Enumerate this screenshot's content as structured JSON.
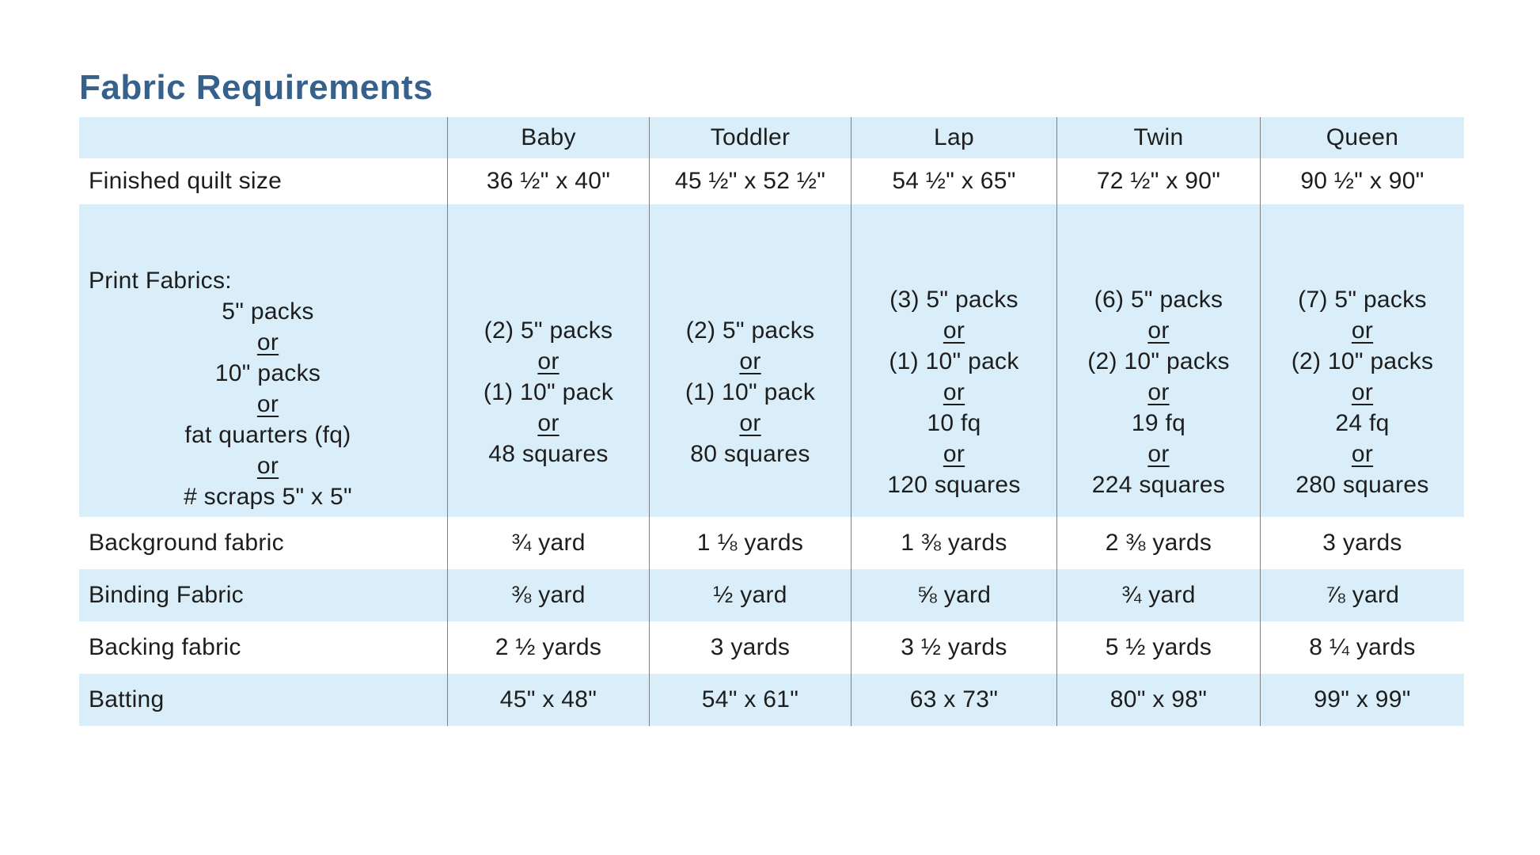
{
  "page": {
    "title": "Fabric Requirements"
  },
  "colors": {
    "title_color": "#36618c",
    "row_blue": "#daeef9",
    "divider": "#7f7f7f",
    "text": "#1d1d1d"
  },
  "table": {
    "columns": [
      "",
      "Baby",
      "Toddler",
      "Lap",
      "Twin",
      "Queen"
    ],
    "rows": [
      {
        "label": "Finished quilt size",
        "cells": [
          "36 ½\" x 40\"",
          "45 ½\" x 52 ½\"",
          "54 ½\" x 65\"",
          "72 ½\" x 90\"",
          "90 ½\" x 90\""
        ]
      },
      {
        "label": "Print Fabrics:",
        "label_lines": [
          "5\" packs",
          "or",
          "10\" packs",
          "or",
          "fat quarters (fq)",
          "or",
          "# scraps 5\" x 5\""
        ],
        "cells": [
          [
            "(2) 5\" packs",
            "or",
            "(1) 10\" pack",
            "or",
            "48 squares"
          ],
          [
            "(2) 5\" packs",
            "or",
            "(1) 10\" pack",
            "or",
            "80 squares"
          ],
          [
            "(3) 5\" packs",
            "or",
            "(1) 10\" pack",
            "or",
            "10 fq",
            "or",
            "120 squares"
          ],
          [
            "(6) 5\" packs",
            "or",
            "(2) 10\" packs",
            "or",
            "19 fq",
            "or",
            "224 squares"
          ],
          [
            "(7) 5\" packs",
            "or",
            "(2) 10\" packs",
            "or",
            "24 fq",
            "or",
            "280 squares"
          ]
        ]
      },
      {
        "label": "Background fabric",
        "cells": [
          "¾ yard",
          "1 ⅛ yards",
          "1 ⅜ yards",
          "2 ⅜ yards",
          "3 yards"
        ]
      },
      {
        "label": "Binding Fabric",
        "cells": [
          "⅜ yard",
          "½ yard",
          "⅝ yard",
          "¾ yard",
          "⅞ yard"
        ]
      },
      {
        "label": "Backing fabric",
        "cells": [
          "2 ½ yards",
          "3 yards",
          "3 ½ yards",
          "5 ½ yards",
          "8 ¼ yards"
        ]
      },
      {
        "label": "Batting",
        "cells": [
          "45\" x 48\"",
          "54\" x 61\"",
          "63 x 73\"",
          "80\" x 98\"",
          "99\" x 99\""
        ]
      }
    ]
  }
}
